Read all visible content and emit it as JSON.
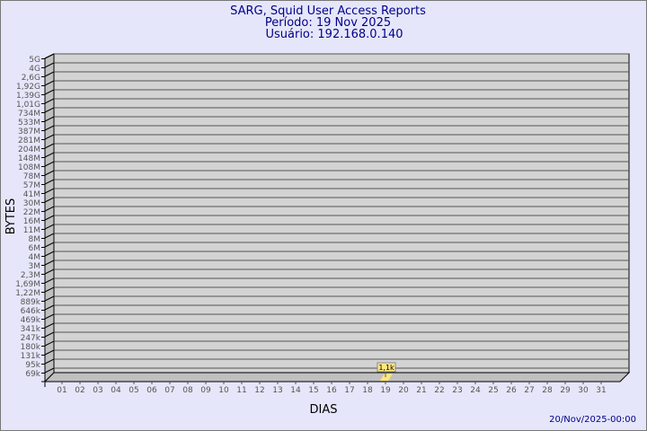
{
  "chart_data": {
    "type": "bar",
    "title": "SARG, Squid User Access Reports",
    "subtitle_period": "Período: 19 Nov 2025",
    "subtitle_user": "Usuário: 192.168.0.140",
    "xlabel": "DIAS",
    "ylabel": "BYTES",
    "y_scale": "log",
    "y_tick_labels": [
      "5G",
      "4G",
      "2,6G",
      "1,92G",
      "1,39G",
      "1,01G",
      "734M",
      "533M",
      "387M",
      "281M",
      "204M",
      "148M",
      "108M",
      "78M",
      "57M",
      "41M",
      "30M",
      "22M",
      "16M",
      "11M",
      "8M",
      "6M",
      "4M",
      "3M",
      "2,3M",
      "1,69M",
      "1,22M",
      "889k",
      "646k",
      "469k",
      "341k",
      "247k",
      "180k",
      "131k",
      "95k",
      "69k"
    ],
    "categories": [
      "01",
      "02",
      "03",
      "04",
      "05",
      "06",
      "07",
      "08",
      "09",
      "10",
      "11",
      "12",
      "13",
      "14",
      "15",
      "16",
      "17",
      "18",
      "19",
      "20",
      "21",
      "22",
      "23",
      "24",
      "25",
      "26",
      "27",
      "28",
      "29",
      "30",
      "31"
    ],
    "bars": [
      {
        "category": "19",
        "value": 1100,
        "label": "1,1k"
      }
    ],
    "grid": true,
    "footer": "20/Nov/2025-00:00",
    "colors": {
      "title": "#00008b",
      "wall": "#d3d3d3",
      "side": "#c0c0c0",
      "bar": "#ffe680",
      "background": "#e6e6fa"
    }
  }
}
